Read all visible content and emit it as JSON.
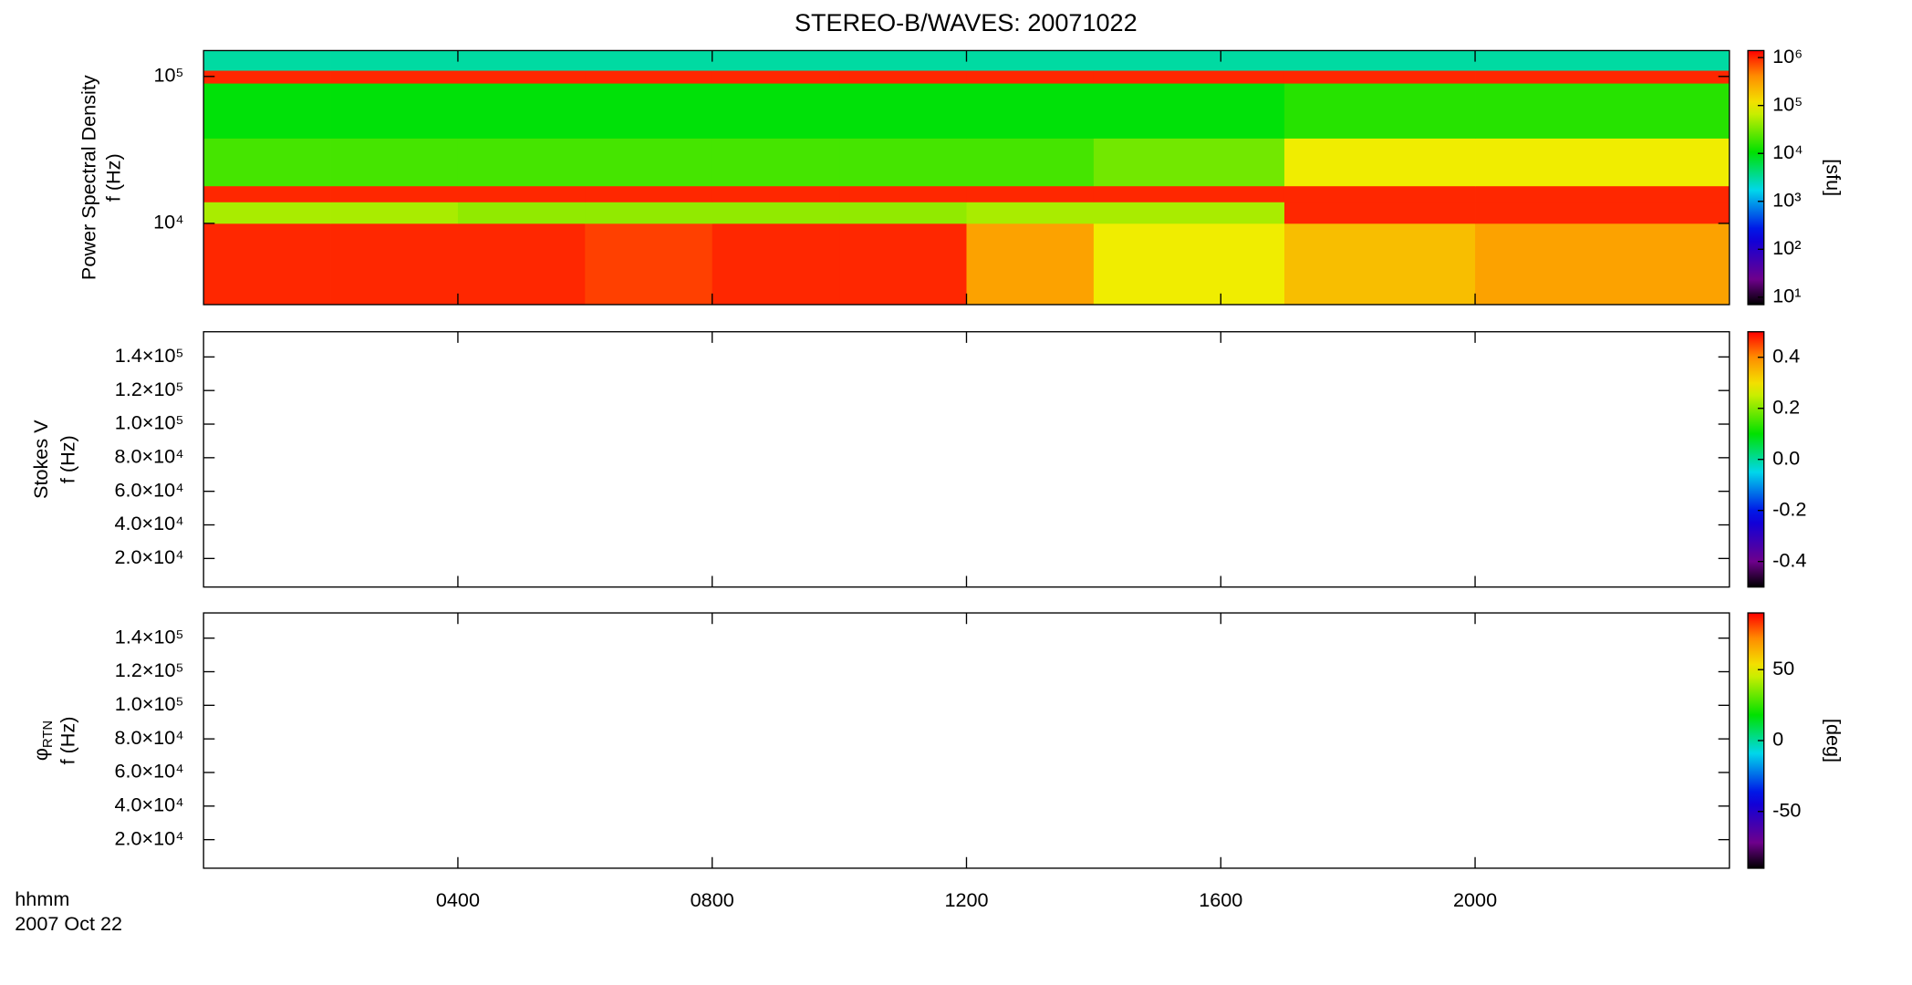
{
  "chart_data": {
    "type": "heatmap",
    "title": "STEREO-B/WAVES: 20071022",
    "x_label": "hhmm",
    "date_label": "2007 Oct 22",
    "xlim": [
      0,
      24
    ],
    "xticks": [
      {
        "value": 4,
        "label": "0400"
      },
      {
        "value": 8,
        "label": "0800"
      },
      {
        "value": 12,
        "label": "1200"
      },
      {
        "value": 16,
        "label": "1600"
      },
      {
        "value": 20,
        "label": "2000"
      }
    ],
    "panels": [
      {
        "ylabel": "Power Spectral Density",
        "ylabel2": "f (Hz)",
        "yscale": "log",
        "ylim": [
          2800,
          150000
        ],
        "yticks": [
          {
            "value": 10000,
            "label": "10⁴"
          },
          {
            "value": 100000,
            "label": "10⁵"
          }
        ],
        "colorbar_label": "[sfu]",
        "cscale": "log",
        "clim": [
          7,
          1400000
        ],
        "cticks": [
          {
            "value": 10,
            "label": "10¹"
          },
          {
            "value": 100,
            "label": "10²"
          },
          {
            "value": 1000,
            "label": "10³"
          },
          {
            "value": 10000,
            "label": "10⁴"
          },
          {
            "value": 100000,
            "label": "10⁵"
          },
          {
            "value": 1000000,
            "label": "10⁶"
          }
        ],
        "time_bins": [
          0,
          2,
          4,
          6,
          8,
          10,
          12,
          14,
          17,
          20,
          24
        ],
        "freq_bins": [
          2800,
          10000,
          14000,
          18000,
          38000,
          90000,
          110000,
          150000
        ],
        "z": [
          [
            1000000,
            1000000,
            1000000,
            800000,
            1000000,
            1000000,
            300000,
            100000,
            200000,
            300000
          ],
          [
            50000,
            50000,
            40000,
            40000,
            40000,
            40000,
            50000,
            50000,
            1000000,
            1000000
          ],
          [
            1000000,
            1000000,
            1000000,
            1000000,
            1000000,
            1000000,
            1000000,
            1000000,
            1000000,
            1000000
          ],
          [
            20000,
            20000,
            20000,
            20000,
            20000,
            20000,
            20000,
            30000,
            100000,
            100000
          ],
          [
            10000,
            10000,
            10000,
            10000,
            10000,
            10000,
            10000,
            10000,
            15000,
            15000
          ],
          [
            1000000,
            1000000,
            1000000,
            1000000,
            1000000,
            1000000,
            1000000,
            1000000,
            1000000,
            1000000
          ],
          [
            3000,
            3000,
            3000,
            3000,
            3000,
            3000,
            3000,
            3000,
            3000,
            3000
          ]
        ]
      },
      {
        "ylabel": "Stokes V",
        "ylabel2": "f (Hz)",
        "yscale": "linear",
        "ylim": [
          3000,
          155000
        ],
        "yticks": [
          {
            "value": 20000,
            "label": "2.0×10⁴"
          },
          {
            "value": 40000,
            "label": "4.0×10⁴"
          },
          {
            "value": 60000,
            "label": "6.0×10⁴"
          },
          {
            "value": 80000,
            "label": "8.0×10⁴"
          },
          {
            "value": 100000,
            "label": "1.0×10⁵"
          },
          {
            "value": 120000,
            "label": "1.2×10⁵"
          },
          {
            "value": 140000,
            "label": "1.4×10⁵"
          }
        ],
        "cscale": "linear",
        "clim": [
          -0.5,
          0.5
        ],
        "cticks": [
          -0.4,
          -0.2,
          {
            "value": 0,
            "label": "0.0"
          },
          0.2,
          0.4
        ]
      },
      {
        "ylabel": "φ",
        "ylabel_sub": "RTN",
        "ylabel2": "f (Hz)",
        "yscale": "linear",
        "ylim": [
          3000,
          155000
        ],
        "yticks": [
          {
            "value": 20000,
            "label": "2.0×10⁴"
          },
          {
            "value": 40000,
            "label": "4.0×10⁴"
          },
          {
            "value": 60000,
            "label": "6.0×10⁴"
          },
          {
            "value": 80000,
            "label": "8.0×10⁴"
          },
          {
            "value": 100000,
            "label": "1.0×10⁵"
          },
          {
            "value": 120000,
            "label": "1.2×10⁵"
          },
          {
            "value": 140000,
            "label": "1.4×10⁵"
          }
        ],
        "colorbar_label": "[deg]",
        "cscale": "linear",
        "clim": [
          -90,
          90
        ],
        "cticks": [
          -50,
          0,
          50
        ]
      }
    ]
  }
}
